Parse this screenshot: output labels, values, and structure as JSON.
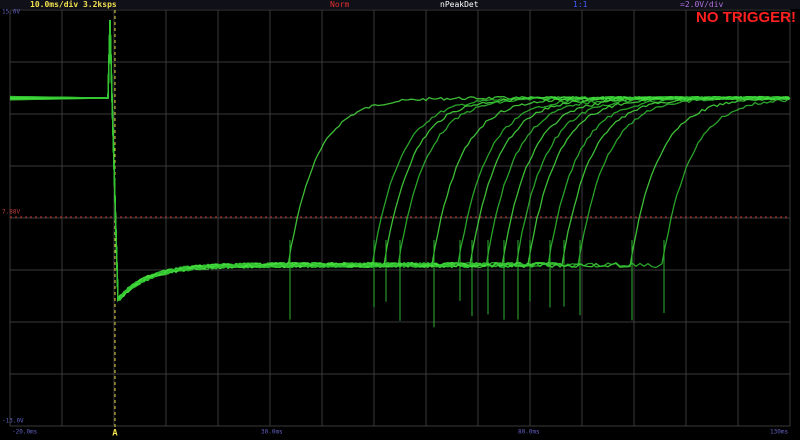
{
  "header": {
    "timebase": "10.0ms/div  3.2ksps",
    "mode": "Norm",
    "acquisition": "nPeakDet",
    "probe": "1:1",
    "scale": "=2.0V/div",
    "status": "NO TRIGGER!"
  },
  "y_labels": {
    "top": "15.0V",
    "trigger_level": "7.88V",
    "bottom": "-13.0V"
  },
  "x_labels": [
    "-20.0ms",
    "30.0ms",
    "80.0ms",
    "130ms"
  ],
  "trigger_marker": "A"
}
